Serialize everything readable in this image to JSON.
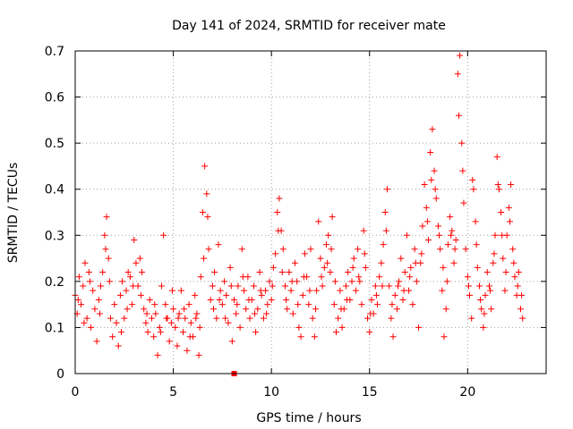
{
  "chart_data": {
    "type": "scatter",
    "title": "Day 141 of 2024, SRMTID for receiver mate",
    "xlabel": "GPS time / hours",
    "ylabel": "SRMTID / TECUs",
    "xlim": [
      0,
      24
    ],
    "ylim": [
      0,
      0.7
    ],
    "xticks": [
      0,
      5,
      10,
      15,
      20
    ],
    "yticks": [
      0,
      0.1,
      0.2,
      0.3,
      0.4,
      0.5,
      0.6,
      0.7
    ],
    "xtick_labels": [
      "0",
      "5",
      "10",
      "15",
      "20"
    ],
    "ytick_labels": [
      "0",
      "0.1",
      "0.2",
      "0.3",
      "0.4",
      "0.5",
      "0.6",
      "0.7"
    ],
    "grid": true,
    "marker": "+",
    "color": "#ff0000",
    "series": [
      {
        "name": "SRMTID",
        "points": [
          [
            0.0,
            0.17
          ],
          [
            0.1,
            0.13
          ],
          [
            0.2,
            0.21
          ],
          [
            0.3,
            0.15
          ],
          [
            0.4,
            0.19
          ],
          [
            0.5,
            0.24
          ],
          [
            0.6,
            0.12
          ],
          [
            0.7,
            0.22
          ],
          [
            0.8,
            0.1
          ],
          [
            0.9,
            0.18
          ],
          [
            1.0,
            0.14
          ],
          [
            1.1,
            0.07
          ],
          [
            1.2,
            0.16
          ],
          [
            1.3,
            0.19
          ],
          [
            1.4,
            0.22
          ],
          [
            1.5,
            0.3
          ],
          [
            1.6,
            0.34
          ],
          [
            1.7,
            0.25
          ],
          [
            1.8,
            0.12
          ],
          [
            1.9,
            0.08
          ],
          [
            2.0,
            0.15
          ],
          [
            2.1,
            0.11
          ],
          [
            2.2,
            0.06
          ],
          [
            2.3,
            0.17
          ],
          [
            2.4,
            0.2
          ],
          [
            2.5,
            0.12
          ],
          [
            2.6,
            0.18
          ],
          [
            2.7,
            0.22
          ],
          [
            2.8,
            0.21
          ],
          [
            2.9,
            0.15
          ],
          [
            3.0,
            0.29
          ],
          [
            3.1,
            0.24
          ],
          [
            3.2,
            0.19
          ],
          [
            3.3,
            0.25
          ],
          [
            3.4,
            0.22
          ],
          [
            3.5,
            0.14
          ],
          [
            3.6,
            0.11
          ],
          [
            3.7,
            0.09
          ],
          [
            3.8,
            0.16
          ],
          [
            3.9,
            0.12
          ],
          [
            4.0,
            0.08
          ],
          [
            4.1,
            0.13
          ],
          [
            4.2,
            0.04
          ],
          [
            4.3,
            0.1
          ],
          [
            4.4,
            0.19
          ],
          [
            4.5,
            0.3
          ],
          [
            4.6,
            0.15
          ],
          [
            4.7,
            0.12
          ],
          [
            4.8,
            0.07
          ],
          [
            4.9,
            0.11
          ],
          [
            5.0,
            0.14
          ],
          [
            5.1,
            0.1
          ],
          [
            5.2,
            0.06
          ],
          [
            5.3,
            0.13
          ],
          [
            5.4,
            0.18
          ],
          [
            5.5,
            0.09
          ],
          [
            5.6,
            0.12
          ],
          [
            5.7,
            0.05
          ],
          [
            5.8,
            0.15
          ],
          [
            5.9,
            0.11
          ],
          [
            6.0,
            0.08
          ],
          [
            6.1,
            0.17
          ],
          [
            6.2,
            0.13
          ],
          [
            6.3,
            0.04
          ],
          [
            6.4,
            0.21
          ],
          [
            6.5,
            0.35
          ],
          [
            6.6,
            0.45
          ],
          [
            6.7,
            0.39
          ],
          [
            6.8,
            0.27
          ],
          [
            6.9,
            0.16
          ],
          [
            7.0,
            0.19
          ],
          [
            7.1,
            0.22
          ],
          [
            7.2,
            0.12
          ],
          [
            7.3,
            0.28
          ],
          [
            7.4,
            0.18
          ],
          [
            7.5,
            0.15
          ],
          [
            7.6,
            0.2
          ],
          [
            7.7,
            0.17
          ],
          [
            7.8,
            0.11
          ],
          [
            7.9,
            0.23
          ],
          [
            8.0,
            0.07
          ],
          [
            8.1,
            0.16
          ],
          [
            8.2,
            0.13
          ],
          [
            8.3,
            0.19
          ],
          [
            8.4,
            0.1
          ],
          [
            8.5,
            0.27
          ],
          [
            8.6,
            0.18
          ],
          [
            8.7,
            0.14
          ],
          [
            8.8,
            0.21
          ],
          [
            8.9,
            0.12
          ],
          [
            9.0,
            0.16
          ],
          [
            9.1,
            0.19
          ],
          [
            9.2,
            0.09
          ],
          [
            9.3,
            0.14
          ],
          [
            9.4,
            0.22
          ],
          [
            9.5,
            0.17
          ],
          [
            9.6,
            0.12
          ],
          [
            9.7,
            0.18
          ],
          [
            9.8,
            0.15
          ],
          [
            9.9,
            0.2
          ],
          [
            10.0,
            0.16
          ],
          [
            10.1,
            0.23
          ],
          [
            10.2,
            0.26
          ],
          [
            10.3,
            0.35
          ],
          [
            10.4,
            0.38
          ],
          [
            10.5,
            0.31
          ],
          [
            10.6,
            0.27
          ],
          [
            10.7,
            0.19
          ],
          [
            10.8,
            0.14
          ],
          [
            10.9,
            0.22
          ],
          [
            11.0,
            0.18
          ],
          [
            11.1,
            0.13
          ],
          [
            11.2,
            0.24
          ],
          [
            11.3,
            0.2
          ],
          [
            11.4,
            0.1
          ],
          [
            11.5,
            0.08
          ],
          [
            11.6,
            0.17
          ],
          [
            11.7,
            0.26
          ],
          [
            11.8,
            0.21
          ],
          [
            11.9,
            0.15
          ],
          [
            12.0,
            0.27
          ],
          [
            12.1,
            0.12
          ],
          [
            12.2,
            0.08
          ],
          [
            12.3,
            0.18
          ],
          [
            12.4,
            0.33
          ],
          [
            12.5,
            0.25
          ],
          [
            12.6,
            0.19
          ],
          [
            12.7,
            0.23
          ],
          [
            12.8,
            0.28
          ],
          [
            12.9,
            0.3
          ],
          [
            13.0,
            0.22
          ],
          [
            13.1,
            0.34
          ],
          [
            13.2,
            0.15
          ],
          [
            13.3,
            0.09
          ],
          [
            13.4,
            0.12
          ],
          [
            13.5,
            0.18
          ],
          [
            13.6,
            0.1
          ],
          [
            13.7,
            0.14
          ],
          [
            13.8,
            0.19
          ],
          [
            13.9,
            0.22
          ],
          [
            14.0,
            0.16
          ],
          [
            14.1,
            0.2
          ],
          [
            14.2,
            0.25
          ],
          [
            14.3,
            0.18
          ],
          [
            14.4,
            0.27
          ],
          [
            14.5,
            0.2
          ],
          [
            14.6,
            0.15
          ],
          [
            14.7,
            0.31
          ],
          [
            14.8,
            0.23
          ],
          [
            14.9,
            0.12
          ],
          [
            15.0,
            0.09
          ],
          [
            15.1,
            0.16
          ],
          [
            15.2,
            0.13
          ],
          [
            15.3,
            0.19
          ],
          [
            15.4,
            0.15
          ],
          [
            15.5,
            0.21
          ],
          [
            15.6,
            0.24
          ],
          [
            15.7,
            0.28
          ],
          [
            15.8,
            0.35
          ],
          [
            15.9,
            0.4
          ],
          [
            16.0,
            0.19
          ],
          [
            16.1,
            0.12
          ],
          [
            16.2,
            0.08
          ],
          [
            16.3,
            0.17
          ],
          [
            16.4,
            0.14
          ],
          [
            16.5,
            0.2
          ],
          [
            16.6,
            0.25
          ],
          [
            16.7,
            0.16
          ],
          [
            16.8,
            0.22
          ],
          [
            16.9,
            0.3
          ],
          [
            17.0,
            0.18
          ],
          [
            17.1,
            0.23
          ],
          [
            17.2,
            0.15
          ],
          [
            17.3,
            0.27
          ],
          [
            17.4,
            0.2
          ],
          [
            17.5,
            0.1
          ],
          [
            17.6,
            0.24
          ],
          [
            17.7,
            0.32
          ],
          [
            17.8,
            0.41
          ],
          [
            17.9,
            0.36
          ],
          [
            18.0,
            0.29
          ],
          [
            18.1,
            0.48
          ],
          [
            18.2,
            0.53
          ],
          [
            18.3,
            0.44
          ],
          [
            18.4,
            0.38
          ],
          [
            18.5,
            0.32
          ],
          [
            18.6,
            0.27
          ],
          [
            18.7,
            0.18
          ],
          [
            18.8,
            0.08
          ],
          [
            18.9,
            0.14
          ],
          [
            19.0,
            0.28
          ],
          [
            19.1,
            0.34
          ],
          [
            19.2,
            0.31
          ],
          [
            19.3,
            0.24
          ],
          [
            19.4,
            0.29
          ],
          [
            19.5,
            0.65
          ],
          [
            19.6,
            0.69
          ],
          [
            19.7,
            0.5
          ],
          [
            19.8,
            0.37
          ],
          [
            19.9,
            0.27
          ],
          [
            20.0,
            0.21
          ],
          [
            20.1,
            0.17
          ],
          [
            20.2,
            0.12
          ],
          [
            20.3,
            0.4
          ],
          [
            20.4,
            0.33
          ],
          [
            20.5,
            0.23
          ],
          [
            20.6,
            0.19
          ],
          [
            20.7,
            0.14
          ],
          [
            20.8,
            0.1
          ],
          [
            20.9,
            0.17
          ],
          [
            21.0,
            0.22
          ],
          [
            21.1,
            0.19
          ],
          [
            21.2,
            0.14
          ],
          [
            21.3,
            0.24
          ],
          [
            21.4,
            0.3
          ],
          [
            21.5,
            0.47
          ],
          [
            21.6,
            0.4
          ],
          [
            21.7,
            0.35
          ],
          [
            21.8,
            0.25
          ],
          [
            21.9,
            0.18
          ],
          [
            22.0,
            0.3
          ],
          [
            22.1,
            0.36
          ],
          [
            22.2,
            0.41
          ],
          [
            22.3,
            0.27
          ],
          [
            22.4,
            0.21
          ],
          [
            22.5,
            0.17
          ],
          [
            22.6,
            0.22
          ],
          [
            22.7,
            0.14
          ],
          [
            22.8,
            0.12
          ],
          [
            0.15,
            0.16
          ],
          [
            0.45,
            0.11
          ],
          [
            0.75,
            0.2
          ],
          [
            1.25,
            0.13
          ],
          [
            1.55,
            0.27
          ],
          [
            1.75,
            0.2
          ],
          [
            2.35,
            0.09
          ],
          [
            2.65,
            0.14
          ],
          [
            2.95,
            0.19
          ],
          [
            3.35,
            0.17
          ],
          [
            3.65,
            0.13
          ],
          [
            4.05,
            0.15
          ],
          [
            4.35,
            0.09
          ],
          [
            4.65,
            0.12
          ],
          [
            4.95,
            0.18
          ],
          [
            5.25,
            0.12
          ],
          [
            5.55,
            0.14
          ],
          [
            5.85,
            0.08
          ],
          [
            6.15,
            0.12
          ],
          [
            6.35,
            0.1
          ],
          [
            6.55,
            0.25
          ],
          [
            6.75,
            0.34
          ],
          [
            7.05,
            0.14
          ],
          [
            7.35,
            0.16
          ],
          [
            7.65,
            0.12
          ],
          [
            7.95,
            0.19
          ],
          [
            8.25,
            0.15
          ],
          [
            8.55,
            0.21
          ],
          [
            8.85,
            0.16
          ],
          [
            9.15,
            0.13
          ],
          [
            9.45,
            0.18
          ],
          [
            9.75,
            0.13
          ],
          [
            10.05,
            0.19
          ],
          [
            10.35,
            0.31
          ],
          [
            10.55,
            0.22
          ],
          [
            10.75,
            0.16
          ],
          [
            11.05,
            0.2
          ],
          [
            11.35,
            0.15
          ],
          [
            11.65,
            0.21
          ],
          [
            11.95,
            0.18
          ],
          [
            12.25,
            0.14
          ],
          [
            12.55,
            0.21
          ],
          [
            12.85,
            0.24
          ],
          [
            13.05,
            0.27
          ],
          [
            13.25,
            0.2
          ],
          [
            13.55,
            0.14
          ],
          [
            13.85,
            0.16
          ],
          [
            14.15,
            0.23
          ],
          [
            14.45,
            0.21
          ],
          [
            14.75,
            0.26
          ],
          [
            15.05,
            0.13
          ],
          [
            15.35,
            0.17
          ],
          [
            15.65,
            0.19
          ],
          [
            15.85,
            0.31
          ],
          [
            16.15,
            0.15
          ],
          [
            16.45,
            0.19
          ],
          [
            16.75,
            0.18
          ],
          [
            17.05,
            0.21
          ],
          [
            17.35,
            0.24
          ],
          [
            17.65,
            0.26
          ],
          [
            17.95,
            0.33
          ],
          [
            18.15,
            0.42
          ],
          [
            18.35,
            0.4
          ],
          [
            18.55,
            0.3
          ],
          [
            18.75,
            0.23
          ],
          [
            18.95,
            0.2
          ],
          [
            19.15,
            0.3
          ],
          [
            19.35,
            0.27
          ],
          [
            19.55,
            0.56
          ],
          [
            19.75,
            0.44
          ],
          [
            20.05,
            0.19
          ],
          [
            20.25,
            0.42
          ],
          [
            20.45,
            0.28
          ],
          [
            20.65,
            0.16
          ],
          [
            20.85,
            0.13
          ],
          [
            21.15,
            0.18
          ],
          [
            21.35,
            0.26
          ],
          [
            21.55,
            0.41
          ],
          [
            21.75,
            0.3
          ],
          [
            21.95,
            0.22
          ],
          [
            22.15,
            0.33
          ],
          [
            22.35,
            0.24
          ],
          [
            22.55,
            0.19
          ],
          [
            22.75,
            0.17
          ]
        ]
      }
    ],
    "special_points": [
      {
        "x": 8.1,
        "y": 0.0,
        "marker": "square"
      }
    ]
  }
}
